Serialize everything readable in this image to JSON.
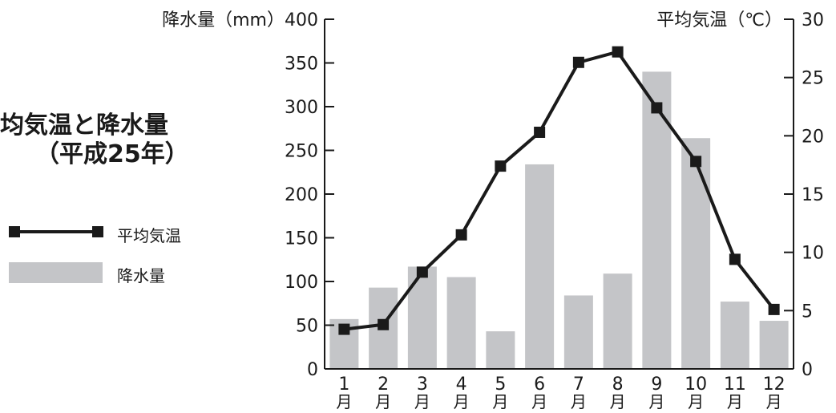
{
  "title_line1": "均気温と降水量",
  "title_line2": "（平成25年）",
  "legend": {
    "line_label": "平均気温",
    "bar_label": "降水量"
  },
  "colors": {
    "bar": "#c4c5c8",
    "line": "#1a1a1a",
    "axis": "#1a1a1a"
  },
  "chart_data": {
    "type": "bar",
    "categories": [
      "1月",
      "2月",
      "3月",
      "4月",
      "5月",
      "6月",
      "7月",
      "8月",
      "9月",
      "10月",
      "11月",
      "12月"
    ],
    "series": [
      {
        "name": "降水量",
        "type": "bar",
        "axis": "left",
        "values": [
          57,
          93,
          117,
          105,
          43,
          234,
          84,
          109,
          340,
          264,
          77,
          55
        ]
      },
      {
        "name": "平均気温",
        "type": "line",
        "axis": "right",
        "values": [
          3.4,
          3.8,
          8.3,
          11.5,
          17.4,
          20.3,
          26.3,
          27.2,
          22.4,
          17.8,
          9.4,
          5.1
        ]
      }
    ],
    "left_axis": {
      "label": "降水量（mm）",
      "min": 0,
      "max": 400,
      "step": 50
    },
    "right_axis": {
      "label": "平均気温（℃）",
      "min": 0,
      "max": 30,
      "step": 5
    },
    "legend_position": "left",
    "grid": false
  }
}
